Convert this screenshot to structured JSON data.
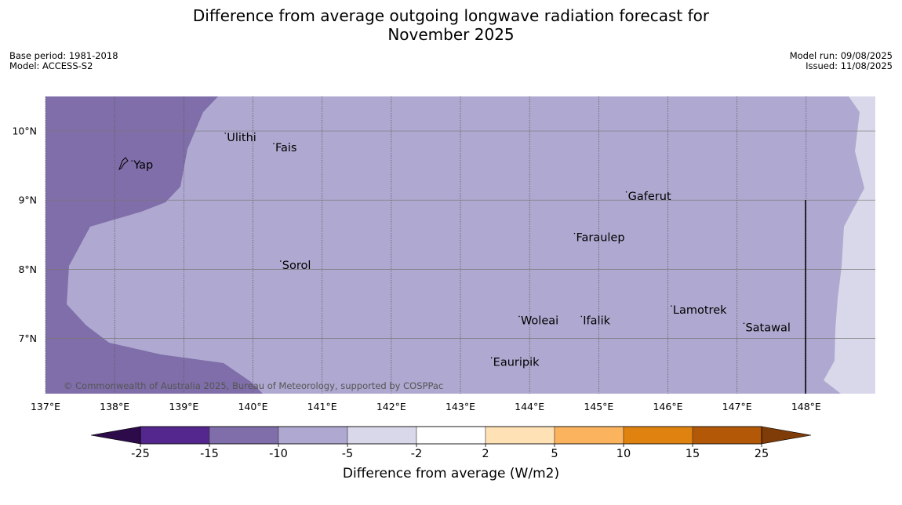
{
  "title": {
    "line1": "Difference from average outgoing longwave radiation forecast for",
    "line2": "November 2025"
  },
  "meta": {
    "base_period": "Base period: 1981-2018",
    "model": "Model: ACCESS-S2",
    "model_run": "Model run: 09/08/2025",
    "issued": "Issued: 11/08/2025"
  },
  "map": {
    "lon_range": [
      137,
      149
    ],
    "lat_range": [
      6.2,
      10.5
    ],
    "lon_ticks": [
      {
        "value": 137,
        "label": "137°E"
      },
      {
        "value": 138,
        "label": "138°E"
      },
      {
        "value": 139,
        "label": "139°E"
      },
      {
        "value": 140,
        "label": "140°E"
      },
      {
        "value": 141,
        "label": "141°E"
      },
      {
        "value": 142,
        "label": "142°E"
      },
      {
        "value": 143,
        "label": "143°E"
      },
      {
        "value": 144,
        "label": "144°E"
      },
      {
        "value": 145,
        "label": "145°E"
      },
      {
        "value": 146,
        "label": "146°E"
      },
      {
        "value": 147,
        "label": "147°E"
      },
      {
        "value": 148,
        "label": "148°E"
      }
    ],
    "lat_ticks": [
      {
        "value": 10,
        "label": "10°N"
      },
      {
        "value": 9,
        "label": "9°N"
      },
      {
        "value": 8,
        "label": "8°N"
      },
      {
        "value": 7,
        "label": "7°N"
      }
    ],
    "places": [
      {
        "name": "Yap",
        "lon": 138.25,
        "lat": 9.5
      },
      {
        "name": "Ulithi",
        "lon": 139.6,
        "lat": 9.9
      },
      {
        "name": "Fais",
        "lon": 140.3,
        "lat": 9.75
      },
      {
        "name": "Gaferut",
        "lon": 145.4,
        "lat": 9.05
      },
      {
        "name": "Faraulep",
        "lon": 144.65,
        "lat": 8.45
      },
      {
        "name": "Sorol",
        "lon": 140.4,
        "lat": 8.05
      },
      {
        "name": "Lamotrek",
        "lon": 146.05,
        "lat": 7.4
      },
      {
        "name": "Woleai",
        "lon": 143.85,
        "lat": 7.25
      },
      {
        "name": "Ifalik",
        "lon": 144.75,
        "lat": 7.25
      },
      {
        "name": "Satawal",
        "lon": 147.1,
        "lat": 7.15
      },
      {
        "name": "Eauripik",
        "lon": 143.45,
        "lat": 6.65
      }
    ],
    "copyright": "© Commonwealth of Australia 2025, Bureau of Meteorology, supported by COSPPac"
  },
  "colorbar": {
    "label": "Difference from average (W/m2)",
    "ticks": [
      "-25",
      "-15",
      "-10",
      "-5",
      "-2",
      "2",
      "5",
      "10",
      "15",
      "25"
    ],
    "colors": [
      "#54278f",
      "#7f6ea9",
      "#afa8d0",
      "#d8d8ea",
      "#ffffff",
      "#fee1b4",
      "#fbb35d",
      "#e0820f",
      "#b35806"
    ],
    "under_color": "#2d0a4a",
    "over_color": "#7f3b08"
  }
}
